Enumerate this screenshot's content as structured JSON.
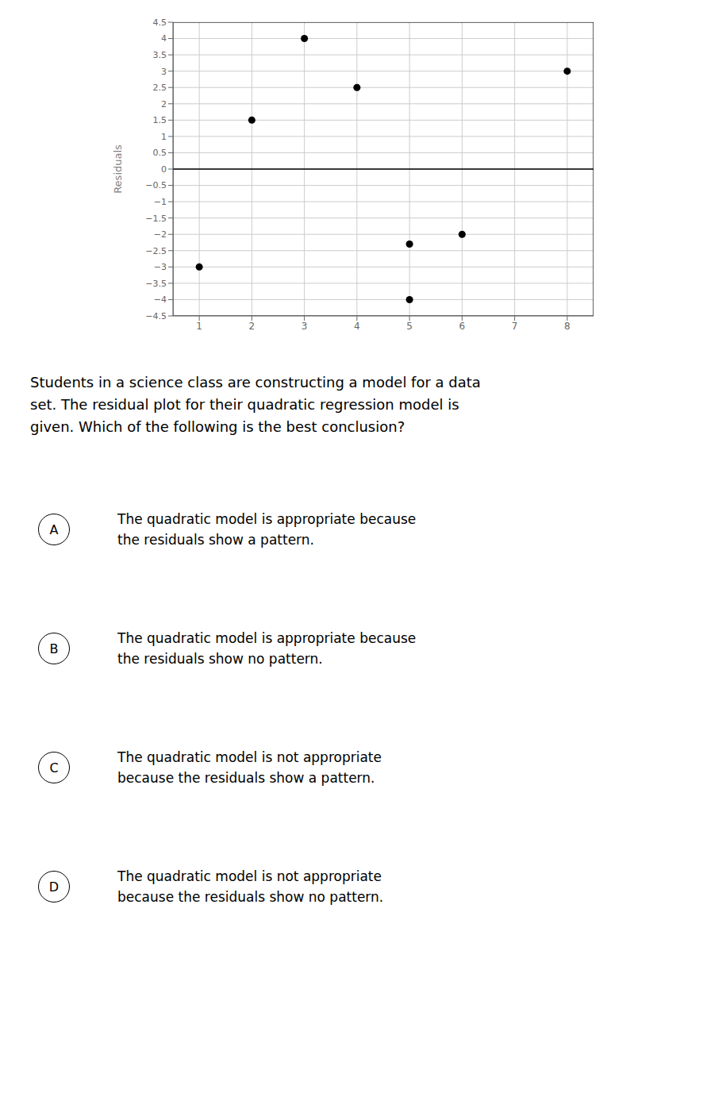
{
  "chart_data": {
    "type": "scatter",
    "y_label": "Residuals",
    "x": [
      1,
      2,
      3,
      4,
      5,
      5,
      6,
      8
    ],
    "values": [
      -3.0,
      1.5,
      4.0,
      2.5,
      -2.3,
      -4.0,
      -2.0,
      3.0
    ],
    "color": "#000000",
    "marker": "circle",
    "xlim": [
      0.5,
      8.5
    ],
    "ylim": [
      -4.5,
      4.5
    ],
    "xticks": [
      1,
      2,
      3,
      4,
      5,
      6,
      7,
      8
    ],
    "yticks": [
      {
        "value": -4.5,
        "label": "−4.5"
      },
      {
        "value": -4,
        "label": "−4"
      },
      {
        "value": -3.5,
        "label": "−3.5"
      },
      {
        "value": -3,
        "label": "−3"
      },
      {
        "value": -2.5,
        "label": "−2.5"
      },
      {
        "value": -2,
        "label": "−2"
      },
      {
        "value": -1.5,
        "label": "−1.5"
      },
      {
        "value": -1,
        "label": "−1"
      },
      {
        "value": -0.5,
        "label": "−0.5"
      },
      0,
      0.5,
      1,
      1.5,
      2,
      2.5,
      3,
      3.5,
      4,
      4.5
    ],
    "grid": true,
    "annotations": [
      "Students in a science class are constructing a model for a data",
      "set. The residual plot for their quadratic regression model is",
      "given. Which of the following is the best conclusion?"
    ],
    "options": [
      {
        "label": "A",
        "text": [
          "The quadratic model is appropriate because",
          "the residuals show a pattern."
        ]
      },
      {
        "label": "B",
        "text": [
          "The quadratic model is appropriate because",
          "the residuals show no pattern."
        ]
      },
      {
        "label": "C",
        "text": [
          "The quadratic model is not appropriate",
          "because the residuals show a pattern."
        ]
      },
      {
        "label": "D",
        "text": [
          "The quadratic model is not appropriate",
          "because the residuals show no pattern."
        ]
      }
    ]
  }
}
